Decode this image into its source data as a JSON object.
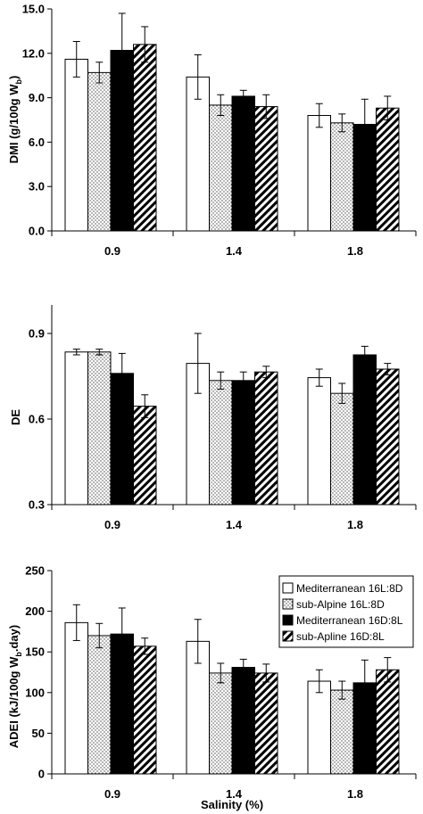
{
  "chart_data": [
    {
      "type": "bar",
      "categories": [
        "0.9",
        "1.4",
        "1.8"
      ],
      "series": [
        {
          "name": "Mediterranean 16L:8D",
          "values": [
            11.6,
            10.4,
            7.8
          ],
          "errors": [
            1.2,
            1.5,
            0.8
          ]
        },
        {
          "name": "sub-Alpine 16L:8D",
          "values": [
            10.7,
            8.5,
            7.3
          ],
          "errors": [
            0.7,
            0.7,
            0.6
          ]
        },
        {
          "name": "Mediterranean 16D:8L",
          "values": [
            12.2,
            9.1,
            7.2
          ],
          "errors": [
            2.5,
            0.4,
            1.7
          ]
        },
        {
          "name": "sub-Apline 16D:8L",
          "values": [
            12.6,
            8.4,
            8.3
          ],
          "errors": [
            1.2,
            0.8,
            0.8
          ]
        }
      ],
      "ylabel_main": "DMI (g/100g W",
      "ylabel_sub": "b",
      "ylabel_end": ")",
      "yticks": [
        "0.0",
        "3.0",
        "6.0",
        "9.0",
        "12.0",
        "15.0"
      ],
      "ylim": [
        0,
        15
      ]
    },
    {
      "type": "bar",
      "categories": [
        "0.9",
        "1.4",
        "1.8"
      ],
      "series": [
        {
          "name": "Mediterranean 16L:8D",
          "values": [
            0.835,
            0.795,
            0.745
          ],
          "errors": [
            0.01,
            0.105,
            0.03
          ]
        },
        {
          "name": "sub-Alpine 16L:8D",
          "values": [
            0.835,
            0.735,
            0.69
          ],
          "errors": [
            0.01,
            0.03,
            0.035
          ]
        },
        {
          "name": "Mediterranean 16D:8L",
          "values": [
            0.76,
            0.735,
            0.825
          ],
          "errors": [
            0.07,
            0.03,
            0.03
          ]
        },
        {
          "name": "sub-Apline 16D:8L",
          "values": [
            0.645,
            0.765,
            0.775
          ],
          "errors": [
            0.04,
            0.02,
            0.02
          ]
        }
      ],
      "ylabel": "DE",
      "yticks": [
        "0.3",
        "0.6",
        "0.9"
      ],
      "ylim": [
        0.3,
        1.0
      ]
    },
    {
      "type": "bar",
      "categories": [
        "0.9",
        "1.4",
        "1.8"
      ],
      "series": [
        {
          "name": "Mediterranean 16L:8D",
          "values": [
            186,
            163,
            114
          ],
          "errors": [
            22,
            27,
            14
          ]
        },
        {
          "name": "sub-Alpine 16L:8D",
          "values": [
            170,
            124,
            103
          ],
          "errors": [
            15,
            12,
            11
          ]
        },
        {
          "name": "Mediterranean 16D:8L",
          "values": [
            172,
            131,
            112
          ],
          "errors": [
            32,
            10,
            28
          ]
        },
        {
          "name": "sub-Apline 16D:8L",
          "values": [
            157,
            124,
            128
          ],
          "errors": [
            10,
            11,
            15
          ]
        }
      ],
      "ylabel_main": "ADEI (kJ/100g W",
      "ylabel_sub": "b",
      "ylabel_end": ".day)",
      "xlabel": "Salinity (%)",
      "yticks": [
        "0",
        "50",
        "100",
        "150",
        "200",
        "250"
      ],
      "ylim": [
        0,
        250
      ],
      "legend": "top-right"
    }
  ],
  "colors": {
    "series": [
      "#ffffff",
      "#ffffff",
      "#000000",
      "#ffffff"
    ],
    "stroke": "#000000"
  },
  "fills": [
    "solid-white",
    "dotted",
    "solid-black",
    "diagonal-stripes"
  ]
}
